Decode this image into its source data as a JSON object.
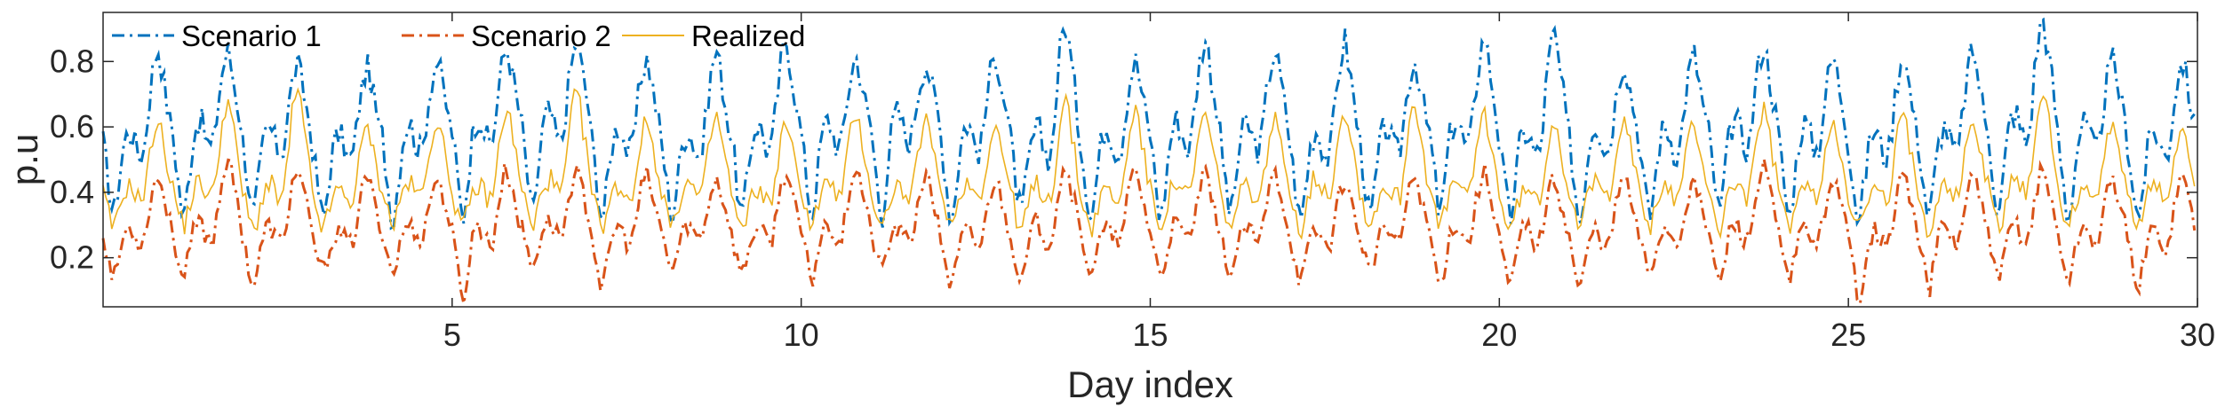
{
  "chart_data": {
    "type": "line",
    "title": "",
    "xlabel": "Day index",
    "ylabel": "p.u",
    "xlim": [
      0,
      30
    ],
    "ylim": [
      0.05,
      0.95
    ],
    "xticks": [
      5,
      10,
      15,
      20,
      25,
      30
    ],
    "xtick_labels": [
      "5",
      "10",
      "15",
      "20",
      "25",
      "30"
    ],
    "yticks": [
      0.2,
      0.4,
      0.6,
      0.8
    ],
    "ytick_labels": [
      "0.2",
      "0.4",
      "0.6",
      "0.8"
    ],
    "grid": false,
    "legend_position": "top-left",
    "samples_per_day": 24,
    "series": [
      {
        "name": "Scenario 1",
        "color": "#0072BD",
        "style": "dash-dot",
        "daily_peaks": [
          0.84,
          0.83,
          0.79,
          0.78,
          0.8,
          0.84,
          0.85,
          0.81,
          0.83,
          0.86,
          0.81,
          0.79,
          0.82,
          0.92,
          0.8,
          0.87,
          0.83,
          0.86,
          0.8,
          0.87,
          0.88,
          0.8,
          0.82,
          0.85,
          0.81,
          0.82,
          0.83,
          0.93,
          0.8,
          0.8
        ],
        "daily_troughs": [
          0.32,
          0.3,
          0.31,
          0.3,
          0.29,
          0.3,
          0.31,
          0.3,
          0.31,
          0.3,
          0.31,
          0.3,
          0.3,
          0.31,
          0.3,
          0.3,
          0.31,
          0.29,
          0.3,
          0.31,
          0.3,
          0.29,
          0.3,
          0.31,
          0.3,
          0.29,
          0.3,
          0.31,
          0.3,
          0.3
        ],
        "daily_mid": [
          0.55,
          0.58,
          0.56,
          0.54,
          0.57,
          0.59,
          0.6,
          0.56,
          0.55,
          0.57,
          0.58,
          0.6,
          0.57,
          0.55,
          0.56,
          0.58,
          0.57,
          0.55,
          0.56,
          0.58,
          0.55,
          0.57,
          0.56,
          0.58,
          0.57,
          0.55,
          0.56,
          0.6,
          0.57,
          0.55
        ]
      },
      {
        "name": "Scenario 2",
        "color": "#D95319",
        "style": "dash-dot",
        "daily_peaks": [
          0.45,
          0.5,
          0.47,
          0.45,
          0.44,
          0.47,
          0.46,
          0.45,
          0.44,
          0.46,
          0.48,
          0.45,
          0.44,
          0.48,
          0.47,
          0.45,
          0.46,
          0.44,
          0.45,
          0.46,
          0.44,
          0.45,
          0.43,
          0.47,
          0.44,
          0.46,
          0.45,
          0.47,
          0.44,
          0.45
        ],
        "daily_troughs": [
          0.13,
          0.12,
          0.1,
          0.15,
          0.14,
          0.06,
          0.16,
          0.09,
          0.15,
          0.14,
          0.12,
          0.16,
          0.1,
          0.1,
          0.15,
          0.13,
          0.14,
          0.12,
          0.15,
          0.1,
          0.09,
          0.09,
          0.14,
          0.1,
          0.11,
          0.07,
          0.09,
          0.1,
          0.12,
          0.1
        ],
        "daily_mid": [
          0.27,
          0.28,
          0.27,
          0.26,
          0.28,
          0.27,
          0.29,
          0.27,
          0.28,
          0.27,
          0.28,
          0.27,
          0.26,
          0.28,
          0.27,
          0.28,
          0.27,
          0.26,
          0.27,
          0.28,
          0.27,
          0.26,
          0.27,
          0.28,
          0.27,
          0.26,
          0.27,
          0.28,
          0.27,
          0.26
        ]
      },
      {
        "name": "Realized",
        "color": "#EDB120",
        "style": "solid",
        "daily_peaks": [
          0.62,
          0.68,
          0.71,
          0.6,
          0.62,
          0.66,
          0.7,
          0.62,
          0.63,
          0.61,
          0.64,
          0.62,
          0.6,
          0.68,
          0.66,
          0.64,
          0.62,
          0.65,
          0.68,
          0.64,
          0.62,
          0.63,
          0.61,
          0.65,
          0.62,
          0.64,
          0.62,
          0.72,
          0.62,
          0.6
        ],
        "daily_troughs": [
          0.28,
          0.29,
          0.27,
          0.28,
          0.29,
          0.28,
          0.27,
          0.29,
          0.28,
          0.27,
          0.29,
          0.28,
          0.29,
          0.27,
          0.28,
          0.29,
          0.28,
          0.27,
          0.29,
          0.28,
          0.27,
          0.29,
          0.28,
          0.27,
          0.29,
          0.28,
          0.27,
          0.28,
          0.29,
          0.28
        ],
        "daily_mid": [
          0.4,
          0.41,
          0.4,
          0.39,
          0.41,
          0.4,
          0.42,
          0.4,
          0.41,
          0.39,
          0.41,
          0.4,
          0.41,
          0.4,
          0.39,
          0.41,
          0.4,
          0.42,
          0.4,
          0.41,
          0.39,
          0.41,
          0.4,
          0.41,
          0.4,
          0.39,
          0.41,
          0.42,
          0.4,
          0.4
        ]
      }
    ]
  }
}
